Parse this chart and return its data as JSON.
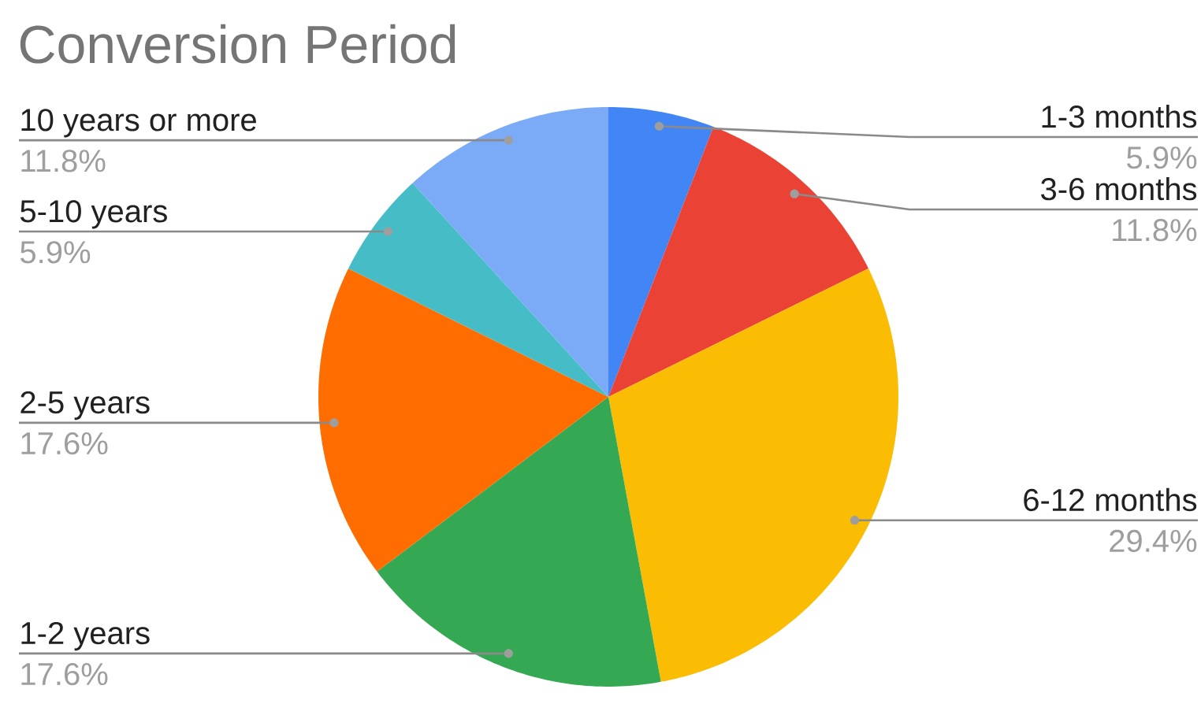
{
  "chart_data": {
    "type": "pie",
    "title": "Conversion Period",
    "categories": [
      "1-3 months",
      "3-6 months",
      "6-12 months",
      "1-2 years",
      "2-5 years",
      "5-10 years",
      "10 years or more"
    ],
    "values": [
      5.9,
      11.8,
      29.4,
      17.6,
      17.6,
      5.9,
      11.8
    ],
    "colors": [
      "#4285f4",
      "#ea4335",
      "#fbbc04",
      "#34a853",
      "#ff6d01",
      "#46bdc6",
      "#7baaf7"
    ],
    "value_labels": [
      "5.9%",
      "11.8%",
      "29.4%",
      "17.6%",
      "17.6%",
      "5.9%",
      "11.8%"
    ]
  }
}
